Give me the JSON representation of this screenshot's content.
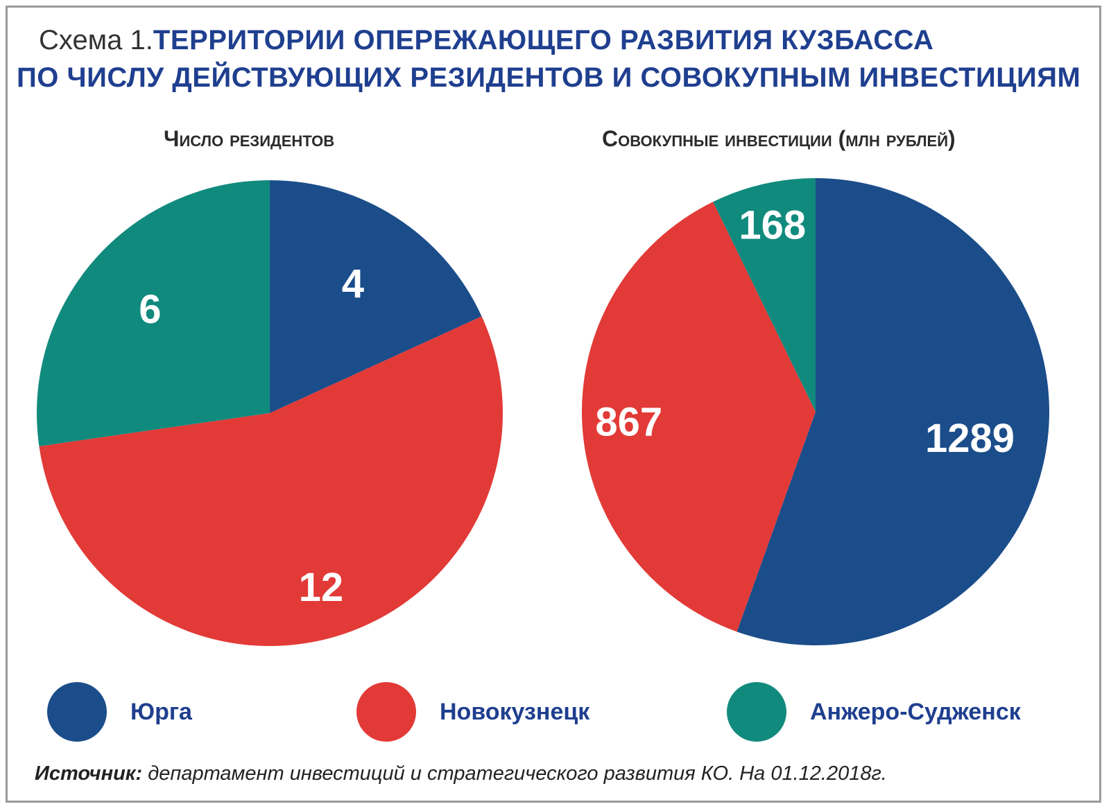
{
  "header": {
    "prefix": "Схема 1.",
    "line1": "ТЕРРИТОРИИ ОПЕРЕЖАЮЩЕГО РАЗВИТИЯ КУЗБАССА",
    "line2": "ПО ЧИСЛУ ДЕЙСТВУЮЩИХ РЕЗИДЕНТОВ И СОВОКУПНЫМ ИНВЕСТИЦИЯМ"
  },
  "colors": {
    "yurga": "#1b4d8a",
    "novokuznetsk": "#e23a37",
    "anzhero": "#118a7e"
  },
  "chart_data": [
    {
      "type": "pie",
      "title": "Число резидентов",
      "categories": [
        "Юрга",
        "Новокузнецк",
        "Анжеро-Судженск"
      ],
      "values": [
        4,
        12,
        6
      ],
      "labels": [
        "4",
        "12",
        "6"
      ],
      "colors": [
        "#1b4d8a",
        "#e23a37",
        "#118a7e"
      ]
    },
    {
      "type": "pie",
      "title": "Совокупные инвестиции (млн рублей)",
      "categories": [
        "Юрга",
        "Новокузнецк",
        "Анжеро-Судженск"
      ],
      "values": [
        1289,
        867,
        168
      ],
      "labels": [
        "1289",
        "867",
        "168"
      ],
      "colors": [
        "#1b4d8a",
        "#e23a37",
        "#118a7e"
      ]
    }
  ],
  "legend": [
    {
      "label": "Юрга",
      "color": "#1b4d8a"
    },
    {
      "label": "Новокузнецк",
      "color": "#e23a37"
    },
    {
      "label": "Анжеро-Судженск",
      "color": "#118a7e"
    }
  ],
  "source": {
    "label": "Источник:",
    "text": "департамент инвестиций и стратегического развития КО. На 01.12.2018г."
  }
}
